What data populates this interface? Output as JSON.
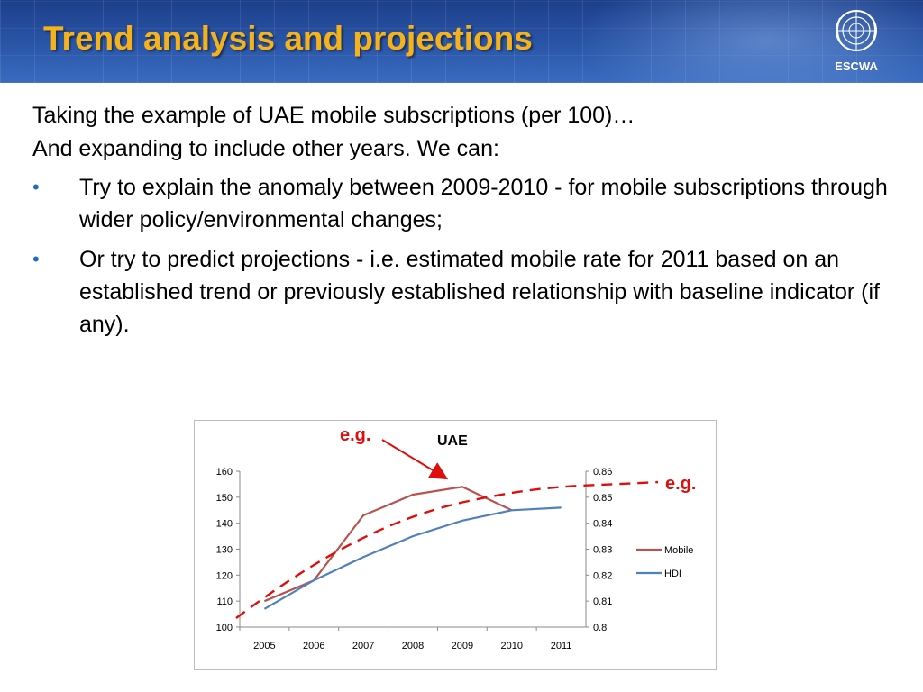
{
  "header": {
    "title": "Trend analysis and projections",
    "logo_icon": "un-emblem-icon",
    "logo_text": "ESCWA",
    "bg_color": "#2a56a8",
    "title_color": "#f5b21a"
  },
  "content": {
    "intro_line1": "Taking the example of UAE mobile subscriptions (per 100)…",
    "intro_line2": "And expanding to include other years. We can:",
    "bullets": [
      {
        "text": "Try to explain the anomaly between 2009-2010 - for mobile subscriptions through wider policy/environmental changes;"
      },
      {
        "text": "Or try to predict projections - i.e. estimated mobile rate for 2011 based on an established trend or previously established relationship with baseline indicator (if any)."
      }
    ],
    "bullet_glyph": "•",
    "bullet_color": "#1f6dc2"
  },
  "annotations": {
    "eg_label": "e.g.",
    "color": "#e00d0d"
  },
  "chart_data": {
    "type": "line",
    "title": "UAE",
    "categories": [
      "2005",
      "2006",
      "2007",
      "2008",
      "2009",
      "2010",
      "2011"
    ],
    "ylim": [
      100,
      160
    ],
    "yticks": [
      "100",
      "110",
      "120",
      "130",
      "140",
      "150",
      "160"
    ],
    "y2lim": [
      0.8,
      0.86
    ],
    "y2ticks": [
      "0.8",
      "0.81",
      "0.82",
      "0.83",
      "0.84",
      "0.85",
      "0.86"
    ],
    "series": [
      {
        "name": "Mobile",
        "axis": "left",
        "color": "#b85450",
        "values": [
          110,
          118,
          143,
          151,
          154,
          145,
          null
        ]
      },
      {
        "name": "HDI",
        "axis": "right",
        "color": "#4f81bd",
        "values": [
          0.807,
          0.818,
          0.827,
          0.835,
          0.841,
          0.845,
          0.846
        ]
      }
    ],
    "trend": {
      "color": "#e00d0d",
      "style": "dashed"
    },
    "legend": "right",
    "grid": false
  }
}
